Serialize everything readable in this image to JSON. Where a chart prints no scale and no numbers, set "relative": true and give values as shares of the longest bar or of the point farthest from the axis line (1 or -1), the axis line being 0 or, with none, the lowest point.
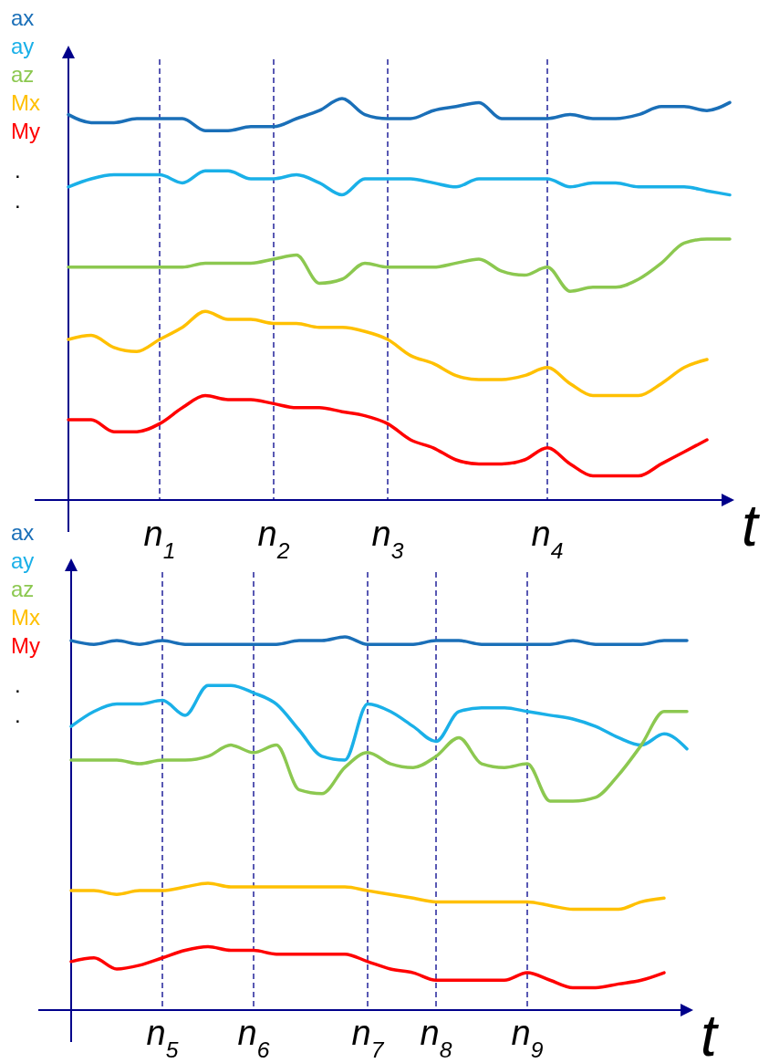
{
  "chart_data": [
    {
      "type": "line",
      "relative": true,
      "xlabel": "t",
      "legend": "left",
      "tick_labels": "x",
      "grid": "x",
      "marker": "none",
      "line_style": "solid",
      "categories": [
        null,
        null,
        null,
        null,
        "n$_{1}$",
        null,
        null,
        null,
        null,
        "n$_{2}$",
        null,
        null,
        null,
        null,
        "n$_{3}$",
        null,
        null,
        null,
        null,
        null,
        null,
        "n$_{4}$",
        null,
        null,
        null,
        null,
        null,
        null,
        null,
        null
      ],
      "series": [
        {
          "name": "ax",
          "color": "#1a6fb8",
          "values": [
            0.96,
            0.94,
            0.94,
            0.95,
            0.95,
            0.95,
            0.92,
            0.92,
            0.93,
            0.93,
            0.95,
            0.97,
            1,
            0.96,
            0.95,
            0.95,
            0.97,
            0.98,
            0.99,
            0.95,
            0.95,
            0.95,
            0.96,
            0.95,
            0.95,
            0.96,
            0.98,
            0.98,
            0.97,
            0.99
          ]
        },
        {
          "name": "ay",
          "color": "#1ab0e8",
          "values": [
            0.78,
            0.8,
            0.81,
            0.81,
            0.81,
            0.79,
            0.82,
            0.82,
            0.8,
            0.8,
            0.81,
            0.79,
            0.76,
            0.8,
            0.8,
            0.8,
            0.79,
            0.78,
            0.8,
            0.8,
            0.8,
            0.8,
            0.78,
            0.79,
            0.79,
            0.78,
            0.78,
            0.78,
            0.77,
            0.76
          ]
        },
        {
          "name": "az",
          "color": "#8cc850",
          "values": [
            0.58,
            0.58,
            0.58,
            0.58,
            0.58,
            0.58,
            0.59,
            0.59,
            0.59,
            0.6,
            0.61,
            0.54,
            0.55,
            0.59,
            0.58,
            0.58,
            0.58,
            0.59,
            0.6,
            0.57,
            0.56,
            0.58,
            0.52,
            0.53,
            0.53,
            0.55,
            0.59,
            0.64,
            0.65,
            0.65
          ]
        },
        {
          "name": "Mx",
          "color": "#ffc000",
          "values": [
            0.4,
            0.41,
            0.38,
            0.37,
            0.4,
            0.43,
            0.47,
            0.45,
            0.45,
            0.44,
            0.44,
            0.43,
            0.43,
            0.42,
            0.4,
            0.36,
            0.34,
            0.31,
            0.3,
            0.3,
            0.31,
            0.33,
            0.29,
            0.26,
            0.26,
            0.26,
            0.29,
            0.33,
            0.35,
            null
          ]
        },
        {
          "name": "My",
          "color": "#ff0000",
          "values": [
            0.2,
            0.2,
            0.17,
            0.17,
            0.19,
            0.23,
            0.26,
            0.25,
            0.25,
            0.24,
            0.23,
            0.23,
            0.22,
            0.21,
            0.19,
            0.15,
            0.13,
            0.1,
            0.09,
            0.09,
            0.1,
            0.13,
            0.09,
            0.06,
            0.06,
            0.06,
            0.09,
            0.12,
            0.15,
            null
          ]
        }
      ],
      "annotations": [
        ".",
        "."
      ]
    },
    {
      "type": "line",
      "relative": true,
      "xlabel": "t",
      "legend": "left",
      "tick_labels": "x",
      "grid": "x",
      "marker": "none",
      "line_style": "solid",
      "categories": [
        null,
        null,
        null,
        null,
        "n$_{5}$",
        null,
        null,
        null,
        "n$_{6}$",
        null,
        null,
        null,
        null,
        "n$_{7}$",
        null,
        null,
        "n$_{8}$",
        null,
        null,
        null,
        "n$_{9}$",
        null,
        null,
        null,
        null,
        null,
        null,
        null
      ],
      "series": [
        {
          "name": "ax",
          "color": "#1a6fb8",
          "values": [
            0.99,
            0.98,
            0.99,
            0.98,
            0.99,
            0.98,
            0.98,
            0.98,
            0.98,
            0.98,
            0.99,
            0.99,
            1,
            0.98,
            0.98,
            0.98,
            0.99,
            0.99,
            0.98,
            0.98,
            0.98,
            0.98,
            0.99,
            0.98,
            0.98,
            0.98,
            0.99,
            0.99
          ]
        },
        {
          "name": "ay",
          "color": "#1ab0e8",
          "values": [
            0.76,
            0.8,
            0.82,
            0.82,
            0.83,
            0.79,
            0.87,
            0.87,
            0.85,
            0.82,
            0.75,
            0.68,
            0.67,
            0.82,
            0.8,
            0.76,
            0.72,
            0.8,
            0.81,
            0.81,
            0.8,
            0.79,
            0.78,
            0.76,
            0.73,
            0.71,
            0.74,
            0.7
          ]
        },
        {
          "name": "az",
          "color": "#8cc850",
          "values": [
            0.67,
            0.67,
            0.67,
            0.66,
            0.67,
            0.67,
            0.68,
            0.71,
            0.69,
            0.71,
            0.59,
            0.58,
            0.65,
            0.69,
            0.66,
            0.65,
            0.68,
            0.73,
            0.66,
            0.65,
            0.66,
            0.56,
            0.56,
            0.57,
            0.63,
            0.71,
            0.8,
            0.8
          ]
        },
        {
          "name": "Mx",
          "color": "#ffc000",
          "values": [
            0.32,
            0.32,
            0.31,
            0.32,
            0.32,
            0.33,
            0.34,
            0.33,
            0.33,
            0.33,
            0.33,
            0.33,
            0.33,
            0.32,
            0.31,
            0.3,
            0.29,
            0.29,
            0.29,
            0.29,
            0.29,
            0.28,
            0.27,
            0.27,
            0.27,
            0.29,
            0.3,
            null
          ]
        },
        {
          "name": "My",
          "color": "#ff0000",
          "values": [
            0.13,
            0.14,
            0.11,
            0.12,
            0.14,
            0.16,
            0.17,
            0.16,
            0.16,
            0.15,
            0.15,
            0.15,
            0.15,
            0.13,
            0.11,
            0.1,
            0.08,
            0.08,
            0.08,
            0.08,
            0.1,
            0.08,
            0.06,
            0.06,
            0.07,
            0.08,
            0.1,
            null
          ]
        }
      ],
      "annotations": [
        ".",
        "."
      ]
    }
  ]
}
